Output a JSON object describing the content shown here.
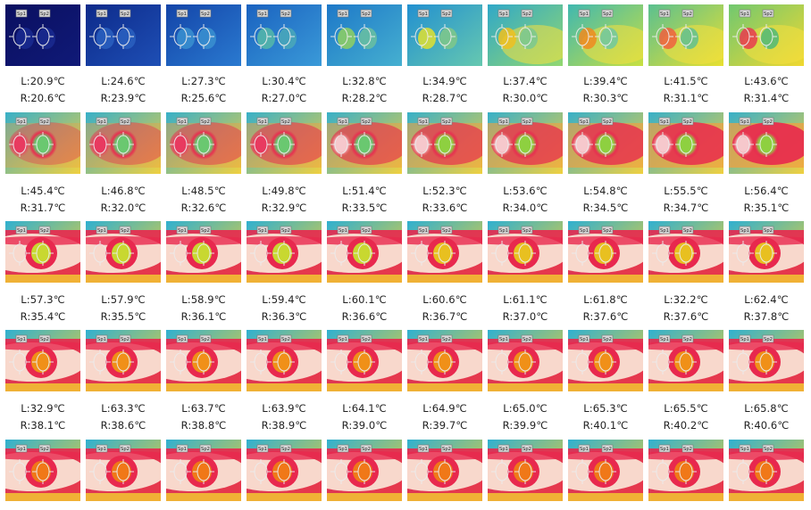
{
  "spot_tags": {
    "left": "Sp1",
    "right": "Sp2"
  },
  "readings": [
    [
      {
        "left": "L:20.9℃",
        "right": "R:20.6℃"
      },
      {
        "left": "L:24.6℃",
        "right": "R:23.9℃"
      },
      {
        "left": "L:27.3℃",
        "right": "R:25.6℃"
      },
      {
        "left": "L:30.4℃",
        "right": "R:27.0℃"
      },
      {
        "left": "L:32.8℃",
        "right": "R:28.2℃"
      },
      {
        "left": "L:34.9℃",
        "right": "R:28.7℃"
      },
      {
        "left": "L:37.4℃",
        "right": "R:30.0℃"
      },
      {
        "left": "L:39.4℃",
        "right": "R:30.3℃"
      },
      {
        "left": "L:41.5℃",
        "right": "R:31.1℃"
      },
      {
        "left": "L:43.6℃",
        "right": "R:31.4℃"
      }
    ],
    [
      {
        "left": "L:45.4℃",
        "right": "R:31.7℃"
      },
      {
        "left": "L:46.8℃",
        "right": "R:32.0℃"
      },
      {
        "left": "L:48.5℃",
        "right": "R:32.6℃"
      },
      {
        "left": "L:49.8℃",
        "right": "R:32.9℃"
      },
      {
        "left": "L:51.4℃",
        "right": "R:33.5℃"
      },
      {
        "left": "L:52.3℃",
        "right": "R:33.6℃"
      },
      {
        "left": "L:53.6℃",
        "right": "R:34.0℃"
      },
      {
        "left": "L:54.8℃",
        "right": "R:34.5℃"
      },
      {
        "left": "L:55.5℃",
        "right": "R:34.7℃"
      },
      {
        "left": "L:56.4℃",
        "right": "R:35.1℃"
      }
    ],
    [
      {
        "left": "L:57.3℃",
        "right": "R:35.4℃"
      },
      {
        "left": "L:57.9℃",
        "right": "R:35.5℃"
      },
      {
        "left": "L:58.9℃",
        "right": "R:36.1℃"
      },
      {
        "left": "L:59.4℃",
        "right": "R:36.3℃"
      },
      {
        "left": "L:60.1℃",
        "right": "R:36.6℃"
      },
      {
        "left": "L:60.6℃",
        "right": "R:36.7℃"
      },
      {
        "left": "L:61.1℃",
        "right": "R:37.0℃"
      },
      {
        "left": "L:61.8℃",
        "right": "R:37.6℃"
      },
      {
        "left": "L:32.2℃",
        "right": "R:37.6℃"
      },
      {
        "left": "L:62.4℃",
        "right": "R:37.8℃"
      }
    ],
    [
      {
        "left": "L:32.9℃",
        "right": "R:38.1℃"
      },
      {
        "left": "L:63.3℃",
        "right": "R:38.6℃"
      },
      {
        "left": "L:63.7℃",
        "right": "R:38.8℃"
      },
      {
        "left": "L:63.9℃",
        "right": "R:38.9℃"
      },
      {
        "left": "L:64.1℃",
        "right": "R:39.0℃"
      },
      {
        "left": "L:64.9℃",
        "right": "R:39.7℃"
      },
      {
        "left": "L:65.0℃",
        "right": "R:39.9℃"
      },
      {
        "left": "L:65.3℃",
        "right": "R:40.1℃"
      },
      {
        "left": "L:65.5℃",
        "right": "R:40.2℃"
      },
      {
        "left": "L:65.8℃",
        "right": "R:40.6℃"
      }
    ]
  ]
}
